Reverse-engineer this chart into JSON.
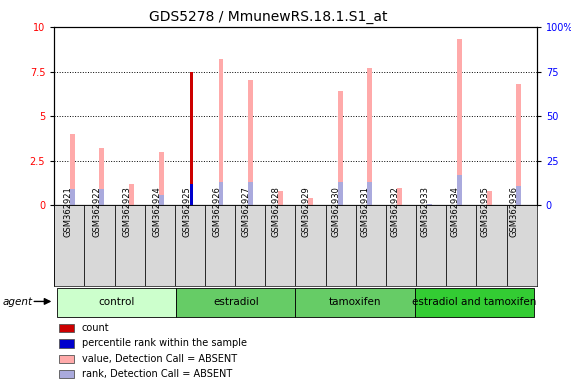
{
  "title": "GDS5278 / MmunewRS.18.1.S1_at",
  "samples": [
    "GSM362921",
    "GSM362922",
    "GSM362923",
    "GSM362924",
    "GSM362925",
    "GSM362926",
    "GSM362927",
    "GSM362928",
    "GSM362929",
    "GSM362930",
    "GSM362931",
    "GSM362932",
    "GSM362933",
    "GSM362934",
    "GSM362935",
    "GSM362936"
  ],
  "count_values": [
    0,
    0,
    0,
    0,
    7.5,
    0,
    0,
    0,
    0,
    0,
    0,
    0,
    0,
    0,
    0,
    0
  ],
  "rank_values": [
    0,
    0,
    0,
    0,
    12,
    0,
    0,
    0,
    0,
    0,
    0,
    0,
    0,
    0,
    0,
    0
  ],
  "value_absent": [
    4.0,
    3.2,
    1.2,
    3.0,
    0.0,
    8.2,
    7.0,
    0.8,
    0.4,
    6.4,
    7.7,
    1.0,
    0.0,
    9.3,
    0.8,
    6.8
  ],
  "rank_absent": [
    9,
    9,
    0,
    6,
    0,
    13,
    13,
    0,
    0,
    13,
    13,
    0,
    1,
    17,
    0,
    11
  ],
  "ylim_left": [
    0,
    10
  ],
  "ylim_right": [
    0,
    100
  ],
  "yticks_left": [
    0,
    2.5,
    5.0,
    7.5,
    10.0
  ],
  "yticks_right": [
    0,
    25,
    50,
    75,
    100
  ],
  "count_color": "#cc0000",
  "rank_color": "#0000cc",
  "value_absent_color": "#ffaaaa",
  "rank_absent_color": "#aaaadd",
  "group_data": [
    {
      "name": "control",
      "color": "#ccffcc",
      "darker": "#99dd99",
      "start": 0,
      "end": 3
    },
    {
      "name": "estradiol",
      "color": "#88dd88",
      "darker": "#66bb66",
      "start": 4,
      "end": 7
    },
    {
      "name": "tamoxifen",
      "color": "#88dd88",
      "darker": "#66bb66",
      "start": 8,
      "end": 11
    },
    {
      "name": "estradiol and tamoxifen",
      "color": "#44cc44",
      "darker": "#22aa22",
      "start": 12,
      "end": 15
    }
  ],
  "tick_fontsize": 7,
  "title_fontsize": 10,
  "bar_width": 0.15
}
